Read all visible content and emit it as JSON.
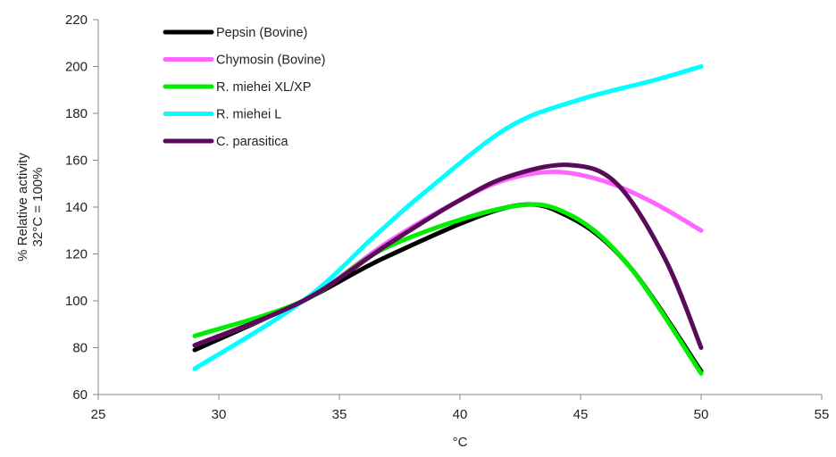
{
  "chart_data": {
    "type": "line",
    "title": "",
    "xlabel": "°C",
    "ylabel": [
      "% Relative activity",
      "32°C = 100%"
    ],
    "xlim": [
      25,
      55
    ],
    "ylim": [
      60,
      220
    ],
    "x_ticks": [
      25,
      30,
      35,
      40,
      45,
      50,
      55
    ],
    "y_ticks": [
      60,
      80,
      100,
      120,
      140,
      160,
      180,
      200,
      220
    ],
    "grid": false,
    "legend_position": "top-left",
    "series": [
      {
        "name": "Pepsin (Bovine)",
        "color": "#000000",
        "points": [
          [
            29,
            79
          ],
          [
            33.5,
            100
          ],
          [
            37,
            119
          ],
          [
            42,
            140
          ],
          [
            44.5,
            136
          ],
          [
            47,
            115
          ],
          [
            50,
            70
          ]
        ]
      },
      {
        "name": "Chymosin (Bovine)",
        "color": "#ff66ff",
        "points": [
          [
            29,
            81
          ],
          [
            33.5,
            100
          ],
          [
            37,
            125
          ],
          [
            40,
            143
          ],
          [
            42,
            152
          ],
          [
            44,
            155
          ],
          [
            46,
            151
          ],
          [
            48,
            142
          ],
          [
            50,
            130
          ]
        ]
      },
      {
        "name": "R. miehei XL/XP",
        "color": "#00ee00",
        "points": [
          [
            29,
            85
          ],
          [
            33.5,
            100
          ],
          [
            37,
            123
          ],
          [
            42,
            140
          ],
          [
            44.5,
            137
          ],
          [
            47,
            115
          ],
          [
            50,
            69
          ]
        ]
      },
      {
        "name": "R. miehei L",
        "color": "#00ffff",
        "points": [
          [
            29,
            71
          ],
          [
            33.5,
            100
          ],
          [
            36.5,
            128
          ],
          [
            38.5,
            146
          ],
          [
            42,
            174
          ],
          [
            45,
            186
          ],
          [
            48,
            194
          ],
          [
            50,
            200
          ]
        ]
      },
      {
        "name": "C. parasitica",
        "color": "#5a0a5a",
        "points": [
          [
            29,
            81
          ],
          [
            33.5,
            100
          ],
          [
            37,
            124
          ],
          [
            40,
            143
          ],
          [
            42,
            153
          ],
          [
            44.5,
            158
          ],
          [
            46.5,
            150
          ],
          [
            48.5,
            118
          ],
          [
            50,
            80
          ]
        ]
      }
    ]
  }
}
